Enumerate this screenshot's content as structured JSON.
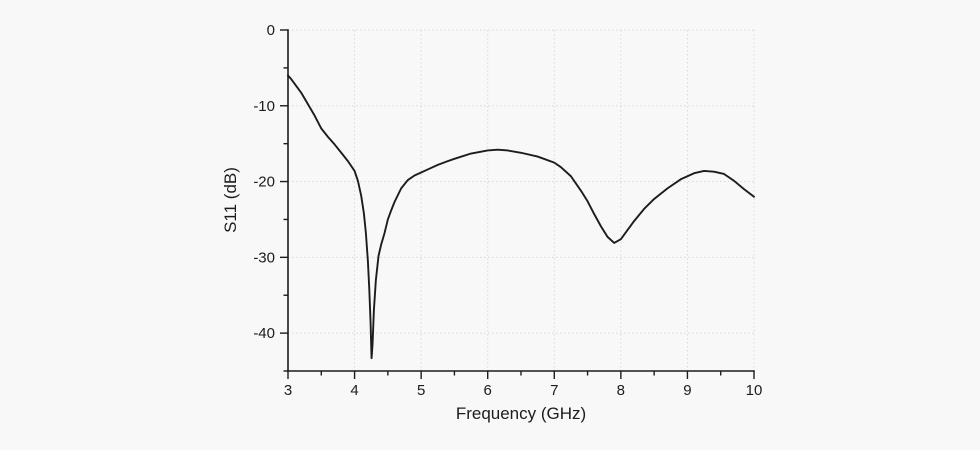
{
  "figure": {
    "background_color": "#f8f8f8",
    "curve_color": "#1c1c1c",
    "axis_color": "#1c1c1c",
    "grid_color": "#d9d9d9",
    "tick_label_color": "#1c1c1c"
  },
  "chart_data": {
    "type": "line",
    "title": "",
    "xlabel": "Frequency (GHz)",
    "ylabel": "S11 (dB)",
    "xlim": [
      3,
      10
    ],
    "ylim": [
      -45,
      0
    ],
    "x_major_ticks": [
      3,
      4,
      5,
      6,
      7,
      8,
      9,
      10
    ],
    "x_minor_ticks": [
      3.5,
      4.5,
      5.5,
      6.5,
      7.5,
      8.5,
      9.5
    ],
    "y_major_ticks": [
      0,
      -10,
      -20,
      -30,
      -40
    ],
    "y_minor_ticks": [
      -5,
      -15,
      -25,
      -35,
      -45
    ],
    "x_tick_labels": [
      "3",
      "4",
      "5",
      "6",
      "7",
      "8",
      "9",
      "10"
    ],
    "y_tick_labels": [
      "0",
      "-10",
      "-20",
      "-30",
      "-40"
    ],
    "grid": {
      "show": true,
      "style": "dotted",
      "x_lines": [
        4,
        5,
        6,
        7,
        8,
        9,
        10
      ],
      "y_lines": [
        0,
        -10,
        -20,
        -30,
        -40
      ]
    },
    "legend": {
      "show": false
    },
    "series": [
      {
        "name": "S11",
        "points": [
          [
            3.0,
            -6.0
          ],
          [
            3.05,
            -6.5
          ],
          [
            3.1,
            -7.1
          ],
          [
            3.2,
            -8.3
          ],
          [
            3.3,
            -9.8
          ],
          [
            3.4,
            -11.3
          ],
          [
            3.5,
            -13.0
          ],
          [
            3.6,
            -14.1
          ],
          [
            3.7,
            -15.1
          ],
          [
            3.8,
            -16.2
          ],
          [
            3.9,
            -17.3
          ],
          [
            4.0,
            -18.6
          ],
          [
            4.05,
            -19.9
          ],
          [
            4.1,
            -21.9
          ],
          [
            4.14,
            -24.2
          ],
          [
            4.17,
            -26.8
          ],
          [
            4.2,
            -30.5
          ],
          [
            4.22,
            -34.0
          ],
          [
            4.24,
            -38.5
          ],
          [
            4.255,
            -43.3
          ],
          [
            4.27,
            -41.5
          ],
          [
            4.29,
            -37.0
          ],
          [
            4.32,
            -33.0
          ],
          [
            4.36,
            -29.8
          ],
          [
            4.4,
            -28.3
          ],
          [
            4.45,
            -26.8
          ],
          [
            4.5,
            -25.0
          ],
          [
            4.55,
            -23.8
          ],
          [
            4.6,
            -22.7
          ],
          [
            4.7,
            -20.9
          ],
          [
            4.8,
            -19.8
          ],
          [
            4.9,
            -19.2
          ],
          [
            5.0,
            -18.8
          ],
          [
            5.1,
            -18.4
          ],
          [
            5.25,
            -17.8
          ],
          [
            5.4,
            -17.3
          ],
          [
            5.5,
            -17.0
          ],
          [
            5.75,
            -16.3
          ],
          [
            6.0,
            -15.9
          ],
          [
            6.15,
            -15.8
          ],
          [
            6.3,
            -15.9
          ],
          [
            6.5,
            -16.2
          ],
          [
            6.75,
            -16.7
          ],
          [
            7.0,
            -17.5
          ],
          [
            7.1,
            -18.1
          ],
          [
            7.25,
            -19.3
          ],
          [
            7.4,
            -21.2
          ],
          [
            7.5,
            -22.6
          ],
          [
            7.6,
            -24.3
          ],
          [
            7.7,
            -25.9
          ],
          [
            7.8,
            -27.3
          ],
          [
            7.9,
            -28.1
          ],
          [
            8.0,
            -27.6
          ],
          [
            8.1,
            -26.4
          ],
          [
            8.2,
            -25.2
          ],
          [
            8.35,
            -23.6
          ],
          [
            8.5,
            -22.3
          ],
          [
            8.7,
            -20.9
          ],
          [
            8.9,
            -19.7
          ],
          [
            9.0,
            -19.3
          ],
          [
            9.1,
            -18.9
          ],
          [
            9.25,
            -18.6
          ],
          [
            9.4,
            -18.7
          ],
          [
            9.55,
            -19.0
          ],
          [
            9.7,
            -19.9
          ],
          [
            9.85,
            -21.0
          ],
          [
            10.0,
            -22.0
          ]
        ]
      }
    ],
    "key_features": {
      "start_value_db": -6.0,
      "notch_1": {
        "freq_ghz": 4.26,
        "s11_db": -43.3
      },
      "local_max_1": {
        "freq_ghz": 6.15,
        "s11_db": -15.8
      },
      "notch_2": {
        "freq_ghz": 7.9,
        "s11_db": -28.1
      },
      "local_max_2": {
        "freq_ghz": 9.25,
        "s11_db": -18.6
      },
      "end_value_db": -22.0
    }
  }
}
